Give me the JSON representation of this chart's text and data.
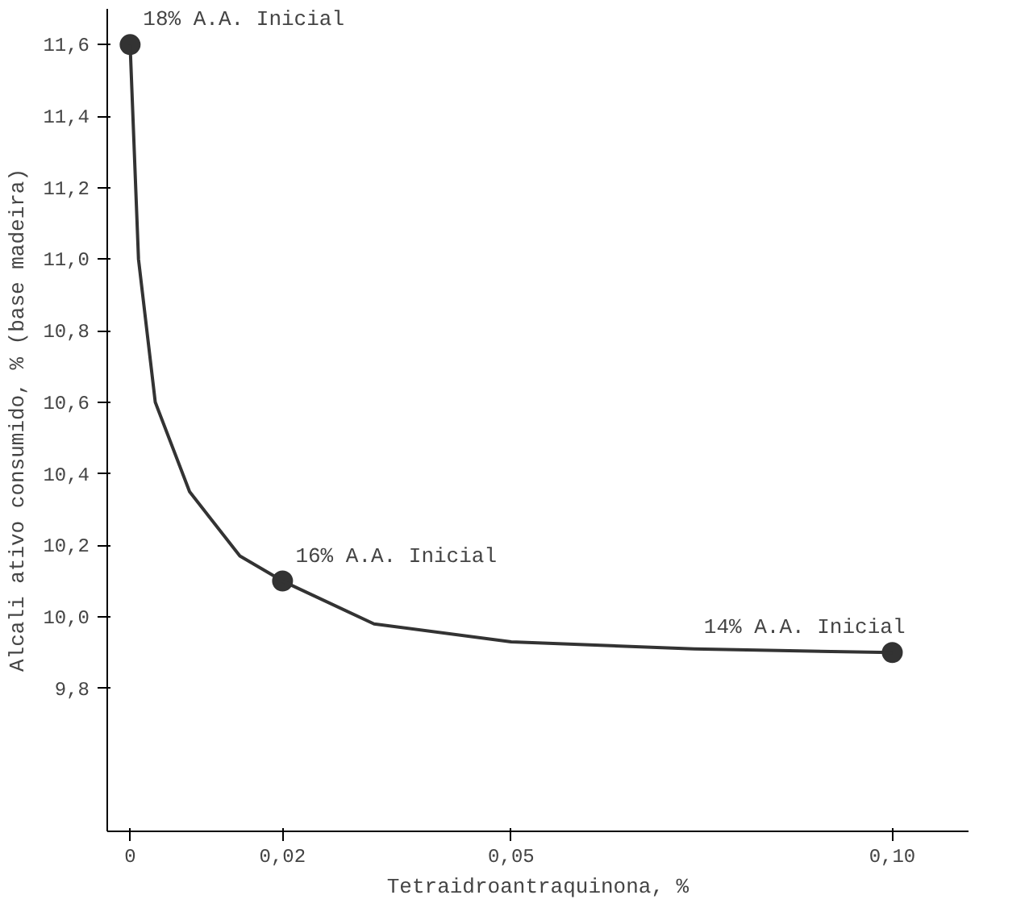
{
  "chart_data": {
    "type": "scatter",
    "xlabel": "Tetraidroantraquinona, %",
    "ylabel": "Alcali ativo consumido, % (base madeira)",
    "xlim": [
      -0.003,
      0.11
    ],
    "xticks": [
      {
        "value": 0,
        "label": "0"
      },
      {
        "value": 0.02,
        "label": "0,02"
      },
      {
        "value": 0.05,
        "label": "0,05"
      },
      {
        "value": 0.1,
        "label": "0,10"
      }
    ],
    "ylim": [
      9.4,
      11.7
    ],
    "yticks": [
      {
        "value": 9.8,
        "label": "9,8"
      },
      {
        "value": 10.0,
        "label": "10,0"
      },
      {
        "value": 10.2,
        "label": "10,2"
      },
      {
        "value": 10.4,
        "label": "10,4"
      },
      {
        "value": 10.6,
        "label": "10,6"
      },
      {
        "value": 10.8,
        "label": "10,8"
      },
      {
        "value": 11.0,
        "label": "11,0"
      },
      {
        "value": 11.2,
        "label": "11,2"
      },
      {
        "value": 11.4,
        "label": "11,4"
      },
      {
        "value": 11.6,
        "label": "11,6"
      }
    ],
    "grid": false,
    "series": [
      {
        "marker": "circle",
        "color": "#333333",
        "x": [
          0,
          0.02,
          0.1
        ],
        "values": [
          11.6,
          10.1,
          9.9
        ]
      },
      {
        "type": "line",
        "marker": "none",
        "color": "#333333",
        "x": [
          0,
          0.0011,
          0.0033,
          0.0078,
          0.0144,
          0.02,
          0.032,
          0.05,
          0.074,
          0.1
        ],
        "values": [
          11.6,
          11.0,
          10.6,
          10.35,
          10.17,
          10.1,
          9.98,
          9.93,
          9.91,
          9.9
        ]
      }
    ],
    "annotations": [
      {
        "text": "18% A.A. Inicial",
        "x": 0,
        "y": 11.6
      },
      {
        "text": "16% A.A. Inicial",
        "x": 0.02,
        "y": 10.1
      },
      {
        "text": "14% A.A. Inicial",
        "x": 0.1,
        "y": 9.9
      }
    ]
  }
}
